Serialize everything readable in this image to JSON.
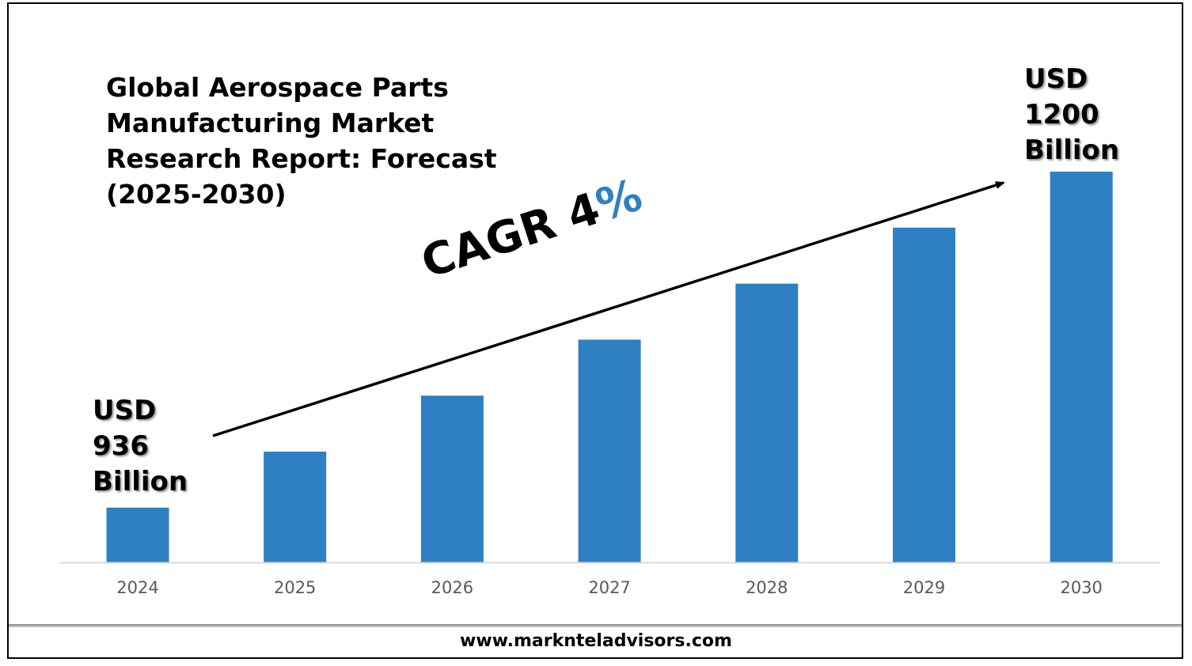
{
  "title": "Global Aerospace Parts\nManufacturing Market\nResearch Report: Forecast\n(2025-2030)",
  "callout_start": {
    "line1": "USD",
    "line2": "936",
    "line3": "Billion"
  },
  "callout_end": {
    "line1": "USD",
    "line2": "1200",
    "line3": "Billion"
  },
  "cagr": {
    "label": "CAGR 4",
    "percent": "%"
  },
  "footer": "www.marknteladvisors.com",
  "colors": {
    "bar": "#2e80c2",
    "axis": "#d9d9d9",
    "tick_label": "#595959",
    "cagr_percent": "#2e80c2"
  },
  "chart_data": {
    "type": "bar",
    "title": "Global Aerospace Parts Manufacturing Market Research Report: Forecast (2025-2030)",
    "categories": [
      "2024",
      "2025",
      "2026",
      "2027",
      "2028",
      "2029",
      "2030"
    ],
    "values": [
      936,
      980,
      1024,
      1068,
      1112,
      1156,
      1200
    ],
    "unit": "USD Billion",
    "ylim": [
      893,
      1200
    ],
    "grid": false,
    "legend": "none",
    "annotations": [
      "USD 936 Billion",
      "USD 1200 Billion",
      "CAGR 4%"
    ]
  }
}
